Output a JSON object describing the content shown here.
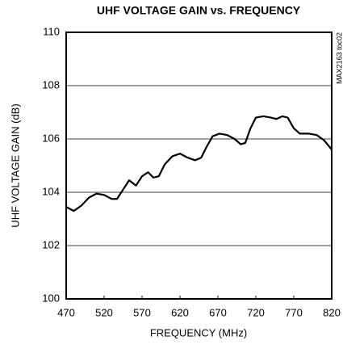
{
  "chart_data": {
    "type": "line",
    "title": "UHF VOLTAGE GAIN vs. FREQUENCY",
    "x_label": "FREQUENCY (MHz)",
    "y_label": "UHF VOLTAGE GAIN (dB)",
    "annotation": "MAX2163 toc02",
    "xlim": [
      470,
      820
    ],
    "xticks": [
      470,
      520,
      570,
      620,
      670,
      720,
      770,
      820
    ],
    "ylim": [
      100,
      110
    ],
    "yticks": [
      100,
      102,
      104,
      106,
      108,
      110
    ],
    "grid": true,
    "series": [
      {
        "name": "UHF",
        "color": "#000000",
        "x": [
          470,
          480,
          490,
          500,
          510,
          520,
          530,
          537,
          545,
          553,
          562,
          570,
          578,
          585,
          592,
          600,
          610,
          620,
          630,
          640,
          648,
          655,
          663,
          672,
          682,
          692,
          700,
          706,
          713,
          720,
          730,
          740,
          747,
          755,
          762,
          770,
          778,
          790,
          800,
          810,
          820
        ],
        "values": [
          103.45,
          103.3,
          103.5,
          103.8,
          103.95,
          103.9,
          103.75,
          103.75,
          104.1,
          104.45,
          104.25,
          104.6,
          104.75,
          104.55,
          104.6,
          105.05,
          105.35,
          105.45,
          105.3,
          105.2,
          105.3,
          105.7,
          106.1,
          106.2,
          106.15,
          106.0,
          105.8,
          105.85,
          106.4,
          106.8,
          106.85,
          106.8,
          106.75,
          106.85,
          106.8,
          106.4,
          106.2,
          106.2,
          106.15,
          105.95,
          105.6
        ]
      }
    ]
  }
}
